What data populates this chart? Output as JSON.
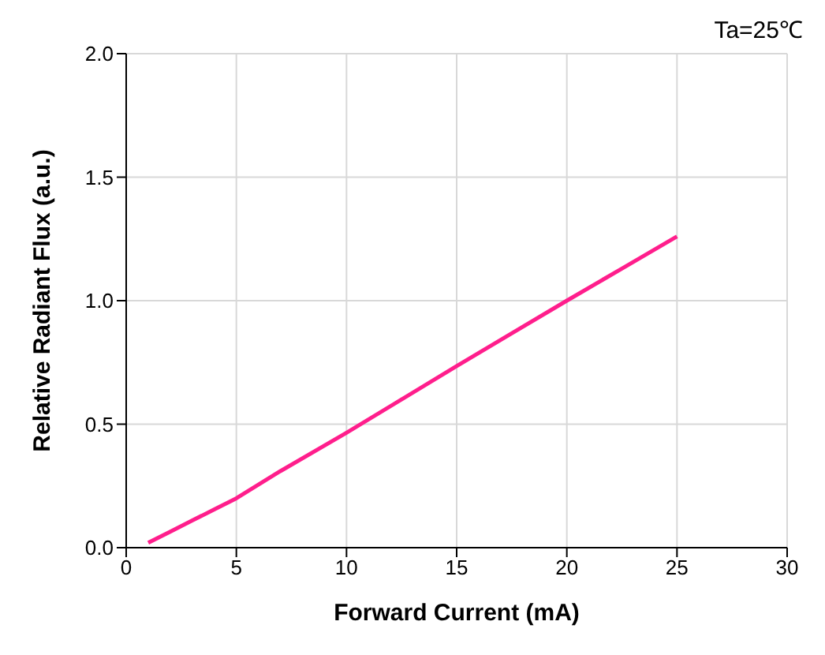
{
  "chart_data": {
    "type": "line",
    "xlabel": "Forward Current (mA)",
    "ylabel": "Relative Radiant Flux (a.u.)",
    "annotations": [
      "Ta=25℃"
    ],
    "x": [
      1,
      2,
      3,
      4,
      5,
      7,
      10,
      12.5,
      15,
      17.5,
      20,
      22.5,
      25
    ],
    "series": [
      {
        "color": "#ff1e8c",
        "values": [
          0.02,
          0.065,
          0.11,
          0.155,
          0.2,
          0.31,
          0.465,
          0.6,
          0.735,
          0.868,
          1.0,
          1.13,
          1.26
        ]
      }
    ],
    "xlim": [
      0,
      30
    ],
    "xticks": [
      0,
      5,
      10,
      15,
      20,
      25,
      30
    ],
    "ylim": [
      0,
      2.0
    ],
    "yticks": [
      {
        "value": 0,
        "label": "0.0"
      },
      {
        "value": 0.5,
        "label": "0.5"
      },
      {
        "value": 1,
        "label": "1.0"
      },
      {
        "value": 1.5,
        "label": "1.5"
      },
      {
        "value": 2,
        "label": "2.0"
      }
    ],
    "grid": true,
    "marker": "none",
    "line_style": "solid",
    "legend": false
  }
}
